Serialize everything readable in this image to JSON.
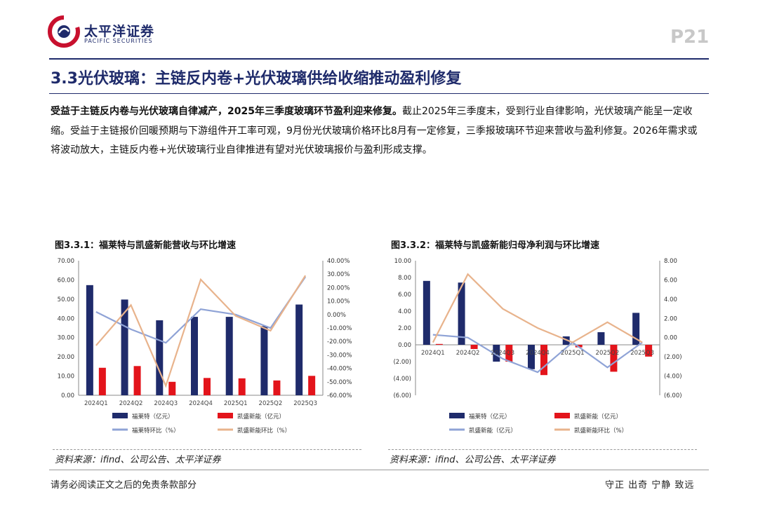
{
  "header": {
    "company_cn": "太平洋证券",
    "company_en": "PACIFIC SECURITIES",
    "page_number": "P21",
    "brand_colors": {
      "navy": "#1f2b6b",
      "red": "#c8102e"
    }
  },
  "section_title": "3.3光伏玻璃：主链反内卷+光伏玻璃供给收缩推动盈利修复",
  "paragraph": {
    "bold": "受益于主链反内卷与光伏玻璃自律减产，2025年三季度玻璃环节盈利迎来修复。",
    "body": "截止2025年三季度末，受到行业自律影响，光伏玻璃产能呈一定收缩。受益于主链报价回暖预期与下游组件开工率可观，9月份光伏玻璃价格环比8月有一定修复，三季报玻璃环节迎来营收与盈利修复。2026年需求或将波动放大，主链反内卷+光伏玻璃行业自律推进有望对光伏玻璃报价与盈利形成支撑。"
  },
  "footer": {
    "disclaimer": "请务必阅读正文之后的免责条款部分",
    "motto": "守正 出奇 宁静 致远"
  },
  "chart_data": [
    {
      "type": "bar",
      "title": "图3.3.1：福莱特与凯盛新能营收与环比增速",
      "source": "资料来源：ifind、公司公告、太平洋证券",
      "categories": [
        "2024Q1",
        "2024Q2",
        "2024Q3",
        "2024Q4",
        "2025Q1",
        "2025Q2",
        "2025Q3"
      ],
      "left_ticks": [
        "70.00",
        "60.00",
        "50.00",
        "40.00",
        "30.00",
        "20.00",
        "10.00",
        "0.00"
      ],
      "right_ticks": [
        "40.00%",
        "30.00%",
        "20.00%",
        "10.00%",
        "0.00%",
        "-10.00%",
        "-20.00%",
        "-30.00%",
        "-40.00%",
        "-50.00%",
        "-60.00%"
      ],
      "ylim": [
        0,
        70
      ],
      "y2lim": [
        -60,
        40
      ],
      "series": [
        {
          "name": "福莱特（亿元）",
          "kind": "bar",
          "axis": "left",
          "color": "#1f2b6b",
          "values": [
            57.3,
            49.8,
            39.0,
            40.8,
            40.8,
            36.0,
            47.2
          ]
        },
        {
          "name": "凯盛新能（亿元）",
          "kind": "bar",
          "axis": "left",
          "color": "#e3141b",
          "values": [
            14.3,
            15.2,
            7.0,
            9.0,
            8.8,
            7.7,
            10.1
          ]
        },
        {
          "name": "福莱特环比（%）",
          "kind": "line",
          "axis": "right",
          "color": "#8fa3d6",
          "values": [
            2.0,
            -11.0,
            -21.0,
            4.0,
            0.0,
            -10.0,
            28.0
          ]
        },
        {
          "name": "凯盛新能环比（%）",
          "kind": "line",
          "axis": "right",
          "color": "#e8b38c",
          "values": [
            -23.0,
            7.0,
            -53.0,
            26.0,
            -1.0,
            -12.0,
            29.0
          ]
        }
      ]
    },
    {
      "type": "bar",
      "title": "图3.3.2：福莱特与凯盛新能归母净利润与环比增速",
      "source": "资料来源：ifind、公司公告、太平洋证券",
      "categories": [
        "2024Q1",
        "2024Q2",
        "2024Q3",
        "2024Q4",
        "2025Q1",
        "2025Q2",
        "2025Q3"
      ],
      "left_ticks": [
        "10.00",
        "8.00",
        "6.00",
        "4.00",
        "2.00",
        "0.00",
        "(2.00)",
        "(4.00)",
        "(6.00)"
      ],
      "right_ticks": [
        "8.00",
        "6.00",
        "4.00",
        "2.00",
        "0.00",
        "(2.00)",
        "(4.00)",
        "(6.00)"
      ],
      "ylim": [
        -6,
        10
      ],
      "y2lim": [
        -6,
        8
      ],
      "series": [
        {
          "name": "福莱特（亿元）",
          "kind": "bar",
          "axis": "left",
          "color": "#1f2b6b",
          "values": [
            7.6,
            7.4,
            -2.0,
            -2.9,
            1.0,
            1.5,
            3.8
          ]
        },
        {
          "name": "凯盛新能（亿元）",
          "kind": "bar",
          "axis": "left",
          "color": "#e3141b",
          "values": [
            0.1,
            -0.5,
            -2.0,
            -3.6,
            -0.3,
            -3.2,
            -1.4
          ]
        },
        {
          "name": "凯盛新能（亿元）",
          "kind": "line",
          "axis": "right",
          "color": "#8fa3d6",
          "values": [
            0.3,
            0.0,
            -2.2,
            -3.6,
            -0.5,
            -3.1,
            -0.5
          ]
        },
        {
          "name": "凯盛新能环比（%）",
          "kind": "line",
          "axis": "right",
          "color": "#e8b38c",
          "values": [
            -0.5,
            6.6,
            3.0,
            1.0,
            -0.5,
            1.6,
            -0.5
          ]
        }
      ]
    }
  ]
}
